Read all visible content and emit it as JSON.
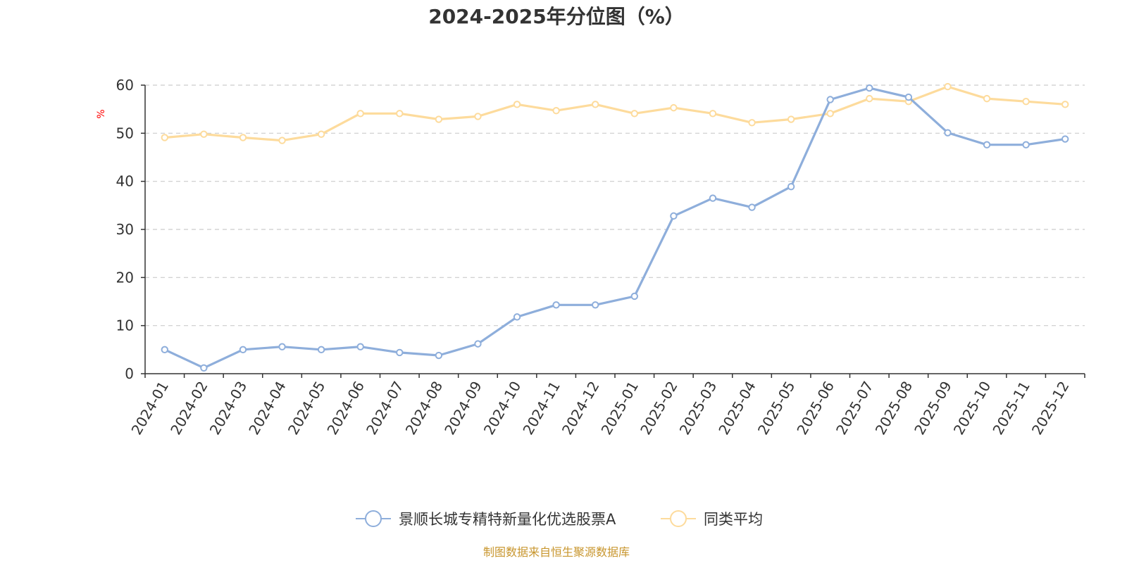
{
  "chart_data": {
    "type": "line",
    "title": "2024-2025年分位图（%）",
    "ylabel": "%",
    "xlabel": "",
    "ylim": [
      0,
      60
    ],
    "yticks": [
      0,
      10,
      20,
      30,
      40,
      50,
      60
    ],
    "grid": true,
    "legend_position": "bottom-center",
    "categories": [
      "2024-01",
      "2024-02",
      "2024-03",
      "2024-04",
      "2024-05",
      "2024-06",
      "2024-07",
      "2024-08",
      "2024-09",
      "2024-10",
      "2024-11",
      "2024-12",
      "2025-01",
      "2025-02",
      "2025-03",
      "2025-04",
      "2025-05",
      "2025-06",
      "2025-07",
      "2025-08",
      "2025-09",
      "2025-10",
      "2025-11",
      "2025-12"
    ],
    "series": [
      {
        "name": "景顺长城专精特新量化优选股票A",
        "color": "#8eaedb",
        "values": [
          5.0,
          1.2,
          5.0,
          5.6,
          5.0,
          5.6,
          4.4,
          3.8,
          6.2,
          11.8,
          14.3,
          14.3,
          16.1,
          32.8,
          36.5,
          34.6,
          38.9,
          57.0,
          59.4,
          57.5,
          50.1,
          47.6,
          47.6,
          48.8
        ]
      },
      {
        "name": "同类平均",
        "color": "#fddb9c",
        "values": [
          49.1,
          49.8,
          49.1,
          48.5,
          49.8,
          54.1,
          54.1,
          52.9,
          53.5,
          56.0,
          54.7,
          56.0,
          54.1,
          55.3,
          54.1,
          52.2,
          52.9,
          54.1,
          57.2,
          56.6,
          59.7,
          57.2,
          56.6,
          56.0
        ]
      }
    ]
  },
  "footer": {
    "source": "制图数据来自恒生聚源数据库"
  }
}
